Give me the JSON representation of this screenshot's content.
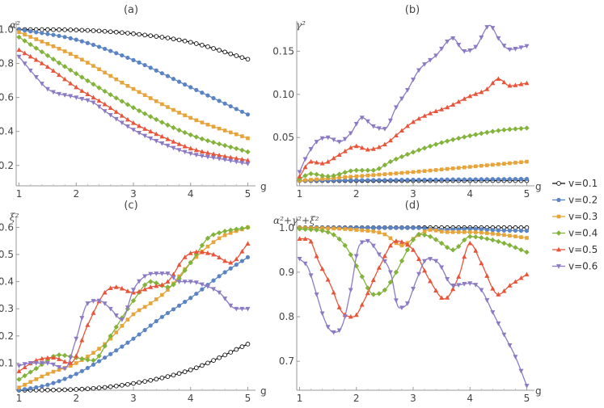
{
  "legend": [
    {
      "label": "v=0.1",
      "color": "#111111",
      "marker": "circle-open"
    },
    {
      "label": "v=0.2",
      "color": "#5b84c4",
      "marker": "circle"
    },
    {
      "label": "v=0.3",
      "color": "#e6a43a",
      "marker": "square"
    },
    {
      "label": "v=0.4",
      "color": "#82b33a",
      "marker": "diamond"
    },
    {
      "label": "v=0.5",
      "color": "#e8553a",
      "marker": "triangle-up"
    },
    {
      "label": "v=0.6",
      "color": "#8c7bc4",
      "marker": "triangle-down"
    }
  ],
  "chart_data": [
    {
      "type": "line",
      "title": "(a)",
      "xlabel": "g",
      "ylabel": "α²",
      "xlim": [
        0.95,
        5.05
      ],
      "ylim": [
        0.08,
        1.05
      ],
      "xticks": [
        1,
        2,
        3,
        4,
        5
      ],
      "yticks": [
        0.2,
        0.4,
        0.6,
        0.8,
        1.0
      ],
      "xtick_labels": [
        "1",
        "2",
        "3",
        "4",
        "5"
      ],
      "ytick_labels": [
        "0.2",
        "0.4",
        "0.6",
        "0.8",
        "1.0"
      ],
      "series": [
        {
          "name": "v=0.1",
          "kx": [
            1,
            2,
            3,
            4,
            5
          ],
          "ky": [
            1.0,
            0.997,
            0.975,
            0.925,
            0.825
          ]
        },
        {
          "name": "v=0.2",
          "kx": [
            1,
            2,
            3,
            4,
            5
          ],
          "ky": [
            1.0,
            0.94,
            0.82,
            0.66,
            0.5
          ]
        },
        {
          "name": "v=0.3",
          "kx": [
            1,
            2,
            3,
            4,
            5
          ],
          "ky": [
            0.985,
            0.84,
            0.65,
            0.48,
            0.36
          ]
        },
        {
          "name": "v=0.4",
          "kx": [
            1,
            2,
            3,
            4,
            5
          ],
          "ky": [
            0.955,
            0.74,
            0.54,
            0.38,
            0.28
          ]
        },
        {
          "name": "v=0.5",
          "kx": [
            1,
            1.5,
            2,
            2.5,
            3,
            3.5,
            4,
            4.5,
            5
          ],
          "ky": [
            0.88,
            0.78,
            0.66,
            0.56,
            0.45,
            0.37,
            0.3,
            0.26,
            0.23
          ]
        },
        {
          "name": "v=0.6",
          "kx": [
            1,
            1.3,
            1.5,
            2,
            2.3,
            2.5,
            3,
            3.5,
            4,
            4.5,
            5
          ],
          "ky": [
            0.84,
            0.72,
            0.65,
            0.6,
            0.57,
            0.52,
            0.41,
            0.33,
            0.27,
            0.24,
            0.21
          ]
        }
      ]
    },
    {
      "type": "line",
      "title": "(b)",
      "xlabel": "g",
      "ylabel": "γ²",
      "xlim": [
        0.95,
        5.05
      ],
      "ylim": [
        -0.006,
        0.185
      ],
      "xticks": [
        1,
        2,
        3,
        4,
        5
      ],
      "yticks": [
        0.05,
        0.1,
        0.15
      ],
      "xtick_labels": [
        "1",
        "2",
        "3",
        "4",
        "5"
      ],
      "ytick_labels": [
        "0.05",
        "0.10",
        "0.15"
      ],
      "series": [
        {
          "name": "v=0.1",
          "kx": [
            1,
            5
          ],
          "ky": [
            0.0,
            0.0
          ]
        },
        {
          "name": "v=0.2",
          "kx": [
            1,
            5
          ],
          "ky": [
            0.0,
            0.002
          ]
        },
        {
          "name": "v=0.3",
          "kx": [
            1,
            2,
            3,
            4,
            5
          ],
          "ky": [
            0.0,
            0.005,
            0.01,
            0.016,
            0.022
          ]
        },
        {
          "name": "v=0.4",
          "kx": [
            1,
            1.2,
            1.5,
            2,
            2.3,
            2.6,
            3,
            3.5,
            4,
            4.5,
            5
          ],
          "ky": [
            0.002,
            0.008,
            0.005,
            0.012,
            0.012,
            0.022,
            0.033,
            0.044,
            0.052,
            0.058,
            0.061
          ]
        },
        {
          "name": "v=0.5",
          "kx": [
            1,
            1.2,
            1.4,
            1.7,
            2,
            2.2,
            2.5,
            2.8,
            3,
            3.3,
            3.6,
            4,
            4.3,
            4.5,
            4.7,
            5
          ],
          "ky": [
            0.005,
            0.022,
            0.02,
            0.03,
            0.04,
            0.036,
            0.042,
            0.058,
            0.068,
            0.078,
            0.085,
            0.098,
            0.106,
            0.118,
            0.11,
            0.113
          ]
        },
        {
          "name": "v=0.6",
          "kx": [
            1,
            1.1,
            1.3,
            1.5,
            1.7,
            1.9,
            2.1,
            2.3,
            2.5,
            2.7,
            2.9,
            3.1,
            3.4,
            3.7,
            3.9,
            4.1,
            4.35,
            4.5,
            4.7,
            5
          ],
          "ky": [
            0.01,
            0.025,
            0.045,
            0.05,
            0.045,
            0.055,
            0.073,
            0.063,
            0.06,
            0.085,
            0.105,
            0.128,
            0.145,
            0.165,
            0.15,
            0.155,
            0.18,
            0.165,
            0.152,
            0.156
          ]
        }
      ]
    },
    {
      "type": "line",
      "title": "(c)",
      "xlabel": "g",
      "ylabel": "ξ²",
      "xlim": [
        0.95,
        5.05
      ],
      "ylim": [
        0.0,
        0.64
      ],
      "xticks": [
        1,
        2,
        3,
        4,
        5
      ],
      "yticks": [
        0.1,
        0.2,
        0.3,
        0.4,
        0.5,
        0.6
      ],
      "xtick_labels": [
        "1",
        "2",
        "3",
        "4",
        "5"
      ],
      "ytick_labels": [
        "0.1",
        "0.2",
        "0.3",
        "0.4",
        "0.5",
        "0.6"
      ],
      "series": [
        {
          "name": "v=0.1",
          "kx": [
            1,
            2,
            3,
            4,
            5
          ],
          "ky": [
            0.0,
            0.003,
            0.025,
            0.075,
            0.17
          ]
        },
        {
          "name": "v=0.2",
          "kx": [
            1,
            1.5,
            2,
            2.5,
            3,
            3.5,
            4,
            4.5,
            5
          ],
          "ky": [
            0.0,
            0.02,
            0.06,
            0.12,
            0.19,
            0.27,
            0.34,
            0.42,
            0.49
          ]
        },
        {
          "name": "v=0.3",
          "kx": [
            1,
            1.5,
            2,
            2.5,
            3,
            3.3,
            3.6,
            4,
            4.5,
            5
          ],
          "ky": [
            0.01,
            0.06,
            0.1,
            0.17,
            0.28,
            0.32,
            0.37,
            0.47,
            0.56,
            0.6
          ]
        },
        {
          "name": "v=0.4",
          "kx": [
            1,
            1.3,
            1.7,
            2,
            2.3,
            2.6,
            3,
            3.3,
            3.6,
            4,
            4.3,
            4.5,
            5
          ],
          "ky": [
            0.04,
            0.08,
            0.13,
            0.12,
            0.11,
            0.2,
            0.33,
            0.4,
            0.38,
            0.47,
            0.56,
            0.58,
            0.6
          ]
        },
        {
          "name": "v=0.5",
          "kx": [
            1,
            1.3,
            1.6,
            1.9,
            2.2,
            2.5,
            2.7,
            3,
            3.3,
            3.6,
            3.9,
            4.1,
            4.4,
            4.7,
            5
          ],
          "ky": [
            0.07,
            0.11,
            0.12,
            0.1,
            0.24,
            0.36,
            0.38,
            0.36,
            0.38,
            0.4,
            0.49,
            0.51,
            0.5,
            0.47,
            0.54
          ]
        },
        {
          "name": "v=0.6",
          "kx": [
            1,
            1.2,
            1.5,
            1.8,
            2.0,
            2.2,
            2.4,
            2.6,
            2.8,
            3.0,
            3.2,
            3.4,
            3.6,
            3.8,
            4.0,
            4.2,
            4.5,
            4.8,
            5
          ],
          "ky": [
            0.09,
            0.1,
            0.1,
            0.08,
            0.19,
            0.32,
            0.33,
            0.3,
            0.26,
            0.37,
            0.42,
            0.43,
            0.43,
            0.4,
            0.4,
            0.39,
            0.36,
            0.3,
            0.3
          ]
        }
      ]
    },
    {
      "type": "line",
      "title": "(d)",
      "xlabel": "g",
      "ylabel": "α²+γ²+ξ²",
      "xlim": [
        0.95,
        5.05
      ],
      "ylim": [
        0.635,
        1.025
      ],
      "xticks": [
        1,
        2,
        3,
        4,
        5
      ],
      "yticks": [
        0.7,
        0.8,
        0.9,
        1.0
      ],
      "xtick_labels": [
        "1",
        "2",
        "3",
        "4",
        "5"
      ],
      "ytick_labels": [
        "0.7",
        "0.8",
        "0.9",
        "1.0"
      ],
      "series": [
        {
          "name": "v=0.1",
          "kx": [
            1,
            5
          ],
          "ky": [
            1.0,
            1.0
          ]
        },
        {
          "name": "v=0.2",
          "kx": [
            1,
            3,
            3.5,
            4,
            4.5,
            5
          ],
          "ky": [
            1.0,
            1.0,
            0.995,
            0.997,
            0.994,
            0.993
          ]
        },
        {
          "name": "v=0.3",
          "kx": [
            1,
            2,
            2.5,
            2.8,
            3,
            3.3,
            3.6,
            4,
            4.5,
            5
          ],
          "ky": [
            1.0,
            0.995,
            0.985,
            0.96,
            0.975,
            0.995,
            0.99,
            0.99,
            0.985,
            0.977
          ]
        },
        {
          "name": "v=0.4",
          "kx": [
            1,
            1.5,
            1.8,
            2.1,
            2.3,
            2.5,
            2.7,
            2.9,
            3.1,
            3.3,
            3.5,
            3.7,
            4,
            4.3,
            4.6,
            5
          ],
          "ky": [
            0.997,
            0.99,
            0.96,
            0.89,
            0.85,
            0.86,
            0.9,
            0.95,
            0.985,
            0.98,
            0.965,
            0.95,
            0.98,
            0.975,
            0.965,
            0.945
          ]
        },
        {
          "name": "v=0.5",
          "kx": [
            1,
            1.15,
            1.35,
            1.55,
            1.75,
            1.95,
            2.15,
            2.4,
            2.7,
            3.0,
            3.3,
            3.55,
            3.8,
            4.0,
            4.2,
            4.5,
            4.7,
            5
          ],
          "ky": [
            0.975,
            0.975,
            0.92,
            0.87,
            0.81,
            0.8,
            0.84,
            0.91,
            0.97,
            0.95,
            0.88,
            0.84,
            0.89,
            0.965,
            0.92,
            0.85,
            0.87,
            0.895
          ]
        },
        {
          "name": "v=0.6",
          "kx": [
            1,
            1.15,
            1.3,
            1.45,
            1.6,
            1.75,
            1.9,
            2.05,
            2.2,
            2.4,
            2.6,
            2.75,
            2.9,
            3.05,
            3.25,
            3.45,
            3.7,
            4.0,
            4.2,
            4.4,
            4.6,
            4.8,
            5
          ],
          "ky": [
            0.93,
            0.91,
            0.85,
            0.79,
            0.765,
            0.78,
            0.86,
            0.96,
            0.97,
            0.94,
            0.9,
            0.82,
            0.83,
            0.88,
            0.93,
            0.92,
            0.87,
            0.875,
            0.86,
            0.81,
            0.76,
            0.71,
            0.645
          ]
        }
      ]
    }
  ]
}
